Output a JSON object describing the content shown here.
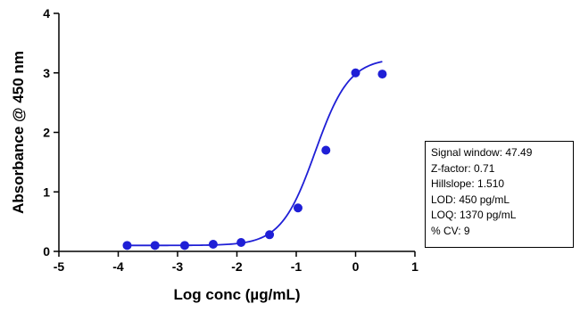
{
  "chart_data": {
    "type": "scatter",
    "title": "",
    "xlabel": "Log conc (µg/mL)",
    "ylabel": "Absorbance @ 450 nm",
    "xlim": [
      -5,
      1
    ],
    "ylim": [
      0,
      4
    ],
    "x_ticks": [
      "-5",
      "-4",
      "-3",
      "-2",
      "-1",
      "0",
      "1"
    ],
    "y_ticks": [
      "0",
      "1",
      "2",
      "3",
      "4"
    ],
    "grid": false,
    "color": "#1f1fd6",
    "series": [
      {
        "x": [
          -3.85,
          -3.38,
          -2.88,
          -2.4,
          -1.93,
          -1.45,
          -0.97,
          -0.5,
          0.0,
          0.45
        ],
        "y": [
          0.1,
          0.1,
          0.1,
          0.12,
          0.15,
          0.28,
          0.73,
          1.7,
          3.0,
          2.98
        ]
      }
    ],
    "fit_curve": {
      "model": "4PL",
      "bottom": 0.1,
      "top": 3.25,
      "log_ec50": -0.68,
      "hillslope": 1.51,
      "x_range": [
        -3.85,
        0.45
      ]
    },
    "annotation_lines": [
      "Signal window: 47.49",
      "Z-factor: 0.71",
      "Hillslope: 1.510",
      "LOD: 450 pg/mL",
      "LOQ: 1370 pg/mL",
      "% CV: 9"
    ]
  }
}
